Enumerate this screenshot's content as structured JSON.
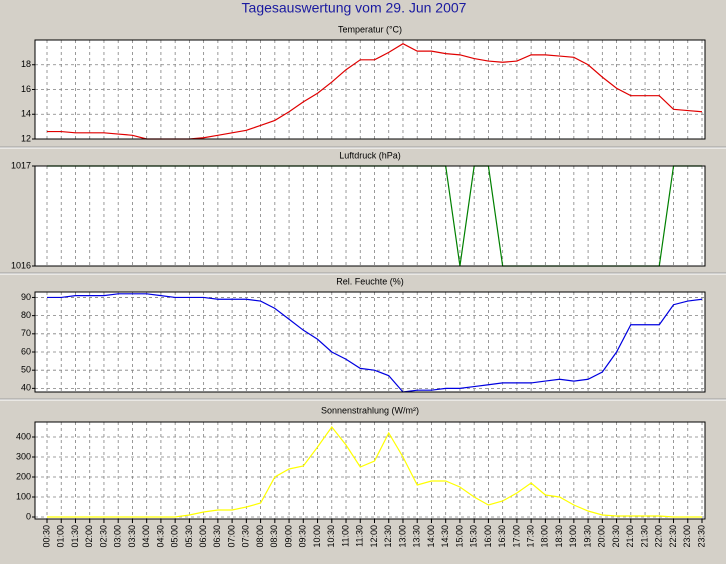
{
  "title": "Tagesauswertung vom 29. Jun 2007",
  "chart_data": [
    {
      "type": "line",
      "title": "Temperatur (°C)",
      "categories": [
        "00:30",
        "01:00",
        "01:30",
        "02:00",
        "02:30",
        "03:00",
        "03:30",
        "04:00",
        "04:30",
        "05:00",
        "05:30",
        "06:00",
        "06:30",
        "07:00",
        "07:30",
        "08:00",
        "08:30",
        "09:00",
        "09:30",
        "10:00",
        "10:30",
        "11:00",
        "11:30",
        "12:00",
        "12:30",
        "13:00",
        "13:30",
        "14:00",
        "14:30",
        "15:00",
        "15:30",
        "16:00",
        "16:30",
        "17:00",
        "17:30",
        "18:00",
        "18:30",
        "19:00",
        "19:30",
        "20:00",
        "20:30",
        "21:00",
        "21:30",
        "22:00",
        "22:30",
        "23:00",
        "23:30"
      ],
      "series": [
        {
          "name": "Temperatur",
          "color": "#e00000",
          "values": [
            12.6,
            12.6,
            12.5,
            12.5,
            12.5,
            12.4,
            12.3,
            12.0,
            12.0,
            12.0,
            12.0,
            12.1,
            12.3,
            12.5,
            12.7,
            13.1,
            13.5,
            14.2,
            15.0,
            15.7,
            16.6,
            17.6,
            18.4,
            18.4,
            19.0,
            19.7,
            19.1,
            19.1,
            18.9,
            18.8,
            18.5,
            18.3,
            18.2,
            18.3,
            18.8,
            18.8,
            18.7,
            18.6,
            18.0,
            17.0,
            16.1,
            15.5,
            15.5,
            15.5,
            14.4,
            14.3,
            14.2
          ]
        }
      ],
      "ylim": [
        12,
        20
      ],
      "yticks": [
        12,
        14,
        16,
        18
      ],
      "grid": true
    },
    {
      "type": "line",
      "title": "Luftdruck (hPa)",
      "categories": [
        "00:30",
        "01:00",
        "01:30",
        "02:00",
        "02:30",
        "03:00",
        "03:30",
        "04:00",
        "04:30",
        "05:00",
        "05:30",
        "06:00",
        "06:30",
        "07:00",
        "07:30",
        "08:00",
        "08:30",
        "09:00",
        "09:30",
        "10:00",
        "10:30",
        "11:00",
        "11:30",
        "12:00",
        "12:30",
        "13:00",
        "13:30",
        "14:00",
        "14:30",
        "15:00",
        "15:30",
        "16:00",
        "16:30",
        "17:00",
        "17:30",
        "18:00",
        "18:30",
        "19:00",
        "19:30",
        "20:00",
        "20:30",
        "21:00",
        "21:30",
        "22:00",
        "22:30",
        "23:00",
        "23:30"
      ],
      "series": [
        {
          "name": "Luftdruck",
          "color": "#008000",
          "values": [
            1017,
            1017,
            1017,
            1017,
            1017,
            1017,
            1017,
            1017,
            1017,
            1017,
            1017,
            1017,
            1017,
            1017,
            1017,
            1017,
            1017,
            1017,
            1017,
            1017,
            1017,
            1017,
            1017,
            1017,
            1017,
            1017,
            1017,
            1017,
            1017,
            1016,
            1017,
            1017,
            1016,
            1016,
            1016,
            1016,
            1016,
            1016,
            1016,
            1016,
            1016,
            1016,
            1016,
            1016,
            1017,
            1017,
            1017
          ]
        }
      ],
      "ylim": [
        1016,
        1017
      ],
      "yticks": [
        1016,
        1017
      ],
      "grid": true
    },
    {
      "type": "line",
      "title": "Rel. Feuchte (%)",
      "categories": [
        "00:30",
        "01:00",
        "01:30",
        "02:00",
        "02:30",
        "03:00",
        "03:30",
        "04:00",
        "04:30",
        "05:00",
        "05:30",
        "06:00",
        "06:30",
        "07:00",
        "07:30",
        "08:00",
        "08:30",
        "09:00",
        "09:30",
        "10:00",
        "10:30",
        "11:00",
        "11:30",
        "12:00",
        "12:30",
        "13:00",
        "13:30",
        "14:00",
        "14:30",
        "15:00",
        "15:30",
        "16:00",
        "16:30",
        "17:00",
        "17:30",
        "18:00",
        "18:30",
        "19:00",
        "19:30",
        "20:00",
        "20:30",
        "21:00",
        "21:30",
        "22:00",
        "22:30",
        "23:00",
        "23:30"
      ],
      "series": [
        {
          "name": "Rel. Feuchte",
          "color": "#0000e0",
          "values": [
            90,
            90,
            91,
            91,
            91,
            92,
            92,
            92,
            91,
            90,
            90,
            90,
            89,
            89,
            89,
            88,
            84,
            78,
            72,
            67,
            60,
            56,
            51,
            50,
            47,
            38,
            39,
            39,
            40,
            40,
            41,
            42,
            43,
            43,
            43,
            44,
            45,
            44,
            45,
            49,
            60,
            75,
            75,
            75,
            86,
            88,
            89
          ]
        }
      ],
      "ylim": [
        38,
        93
      ],
      "yticks": [
        40,
        50,
        60,
        70,
        80,
        90
      ],
      "grid": true
    },
    {
      "type": "line",
      "title": "Sonnenstrahlung (W/m²)",
      "categories": [
        "00:30",
        "01:00",
        "01:30",
        "02:00",
        "02:30",
        "03:00",
        "03:30",
        "04:00",
        "04:30",
        "05:00",
        "05:30",
        "06:00",
        "06:30",
        "07:00",
        "07:30",
        "08:00",
        "08:30",
        "09:00",
        "09:30",
        "10:00",
        "10:30",
        "11:00",
        "11:30",
        "12:00",
        "12:30",
        "13:00",
        "13:30",
        "14:00",
        "14:30",
        "15:00",
        "15:30",
        "16:00",
        "16:30",
        "17:00",
        "17:30",
        "18:00",
        "18:30",
        "19:00",
        "19:30",
        "20:00",
        "20:30",
        "21:00",
        "21:30",
        "22:00",
        "22:30",
        "23:00",
        "23:30"
      ],
      "series": [
        {
          "name": "Sonnenstrahlung",
          "color": "#ffff00",
          "values": [
            0,
            0,
            0,
            0,
            0,
            0,
            0,
            0,
            0,
            0,
            10,
            25,
            35,
            35,
            50,
            70,
            200,
            240,
            255,
            350,
            450,
            360,
            250,
            280,
            420,
            300,
            160,
            180,
            180,
            150,
            100,
            60,
            80,
            120,
            170,
            110,
            100,
            60,
            30,
            10,
            5,
            5,
            5,
            5,
            0,
            0,
            0
          ]
        }
      ],
      "ylim": [
        -10,
        475
      ],
      "yticks": [
        0,
        100,
        200,
        300,
        400
      ],
      "grid": true
    }
  ]
}
